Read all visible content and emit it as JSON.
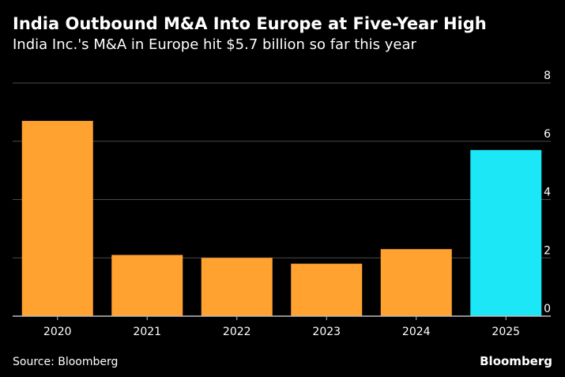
{
  "header": {
    "title": "India Outbound M&A Into Europe at Five-Year High",
    "subtitle": "India Inc.'s M&A in Europe hit $5.7 billion so far this year"
  },
  "footer": {
    "source": "Source: Bloomberg",
    "brand": "Bloomberg"
  },
  "colors": {
    "background": "#000000",
    "bar_default": "#FFA22F",
    "bar_highlight": "#1CE7F7",
    "gridline": "#4a4a4a",
    "axis": "#bdbdbd",
    "text": "#ffffff"
  },
  "chart_data": {
    "type": "bar",
    "title": "India Outbound M&A Into Europe at Five-Year High",
    "subtitle": "India Inc.'s M&A in Europe hit $5.7 billion so far this year",
    "categories": [
      "2020",
      "2021",
      "2022",
      "2023",
      "2024",
      "2025"
    ],
    "values": [
      6.7,
      2.1,
      2.0,
      1.8,
      2.3,
      5.7
    ],
    "highlight": [
      "2025"
    ],
    "xlabel": "",
    "ylabel": "",
    "ylim": [
      0,
      8
    ],
    "yticks": [
      "0",
      "2",
      "4",
      "6",
      "8"
    ],
    "y_axis_side": "right",
    "grid": true,
    "legend": "none"
  }
}
